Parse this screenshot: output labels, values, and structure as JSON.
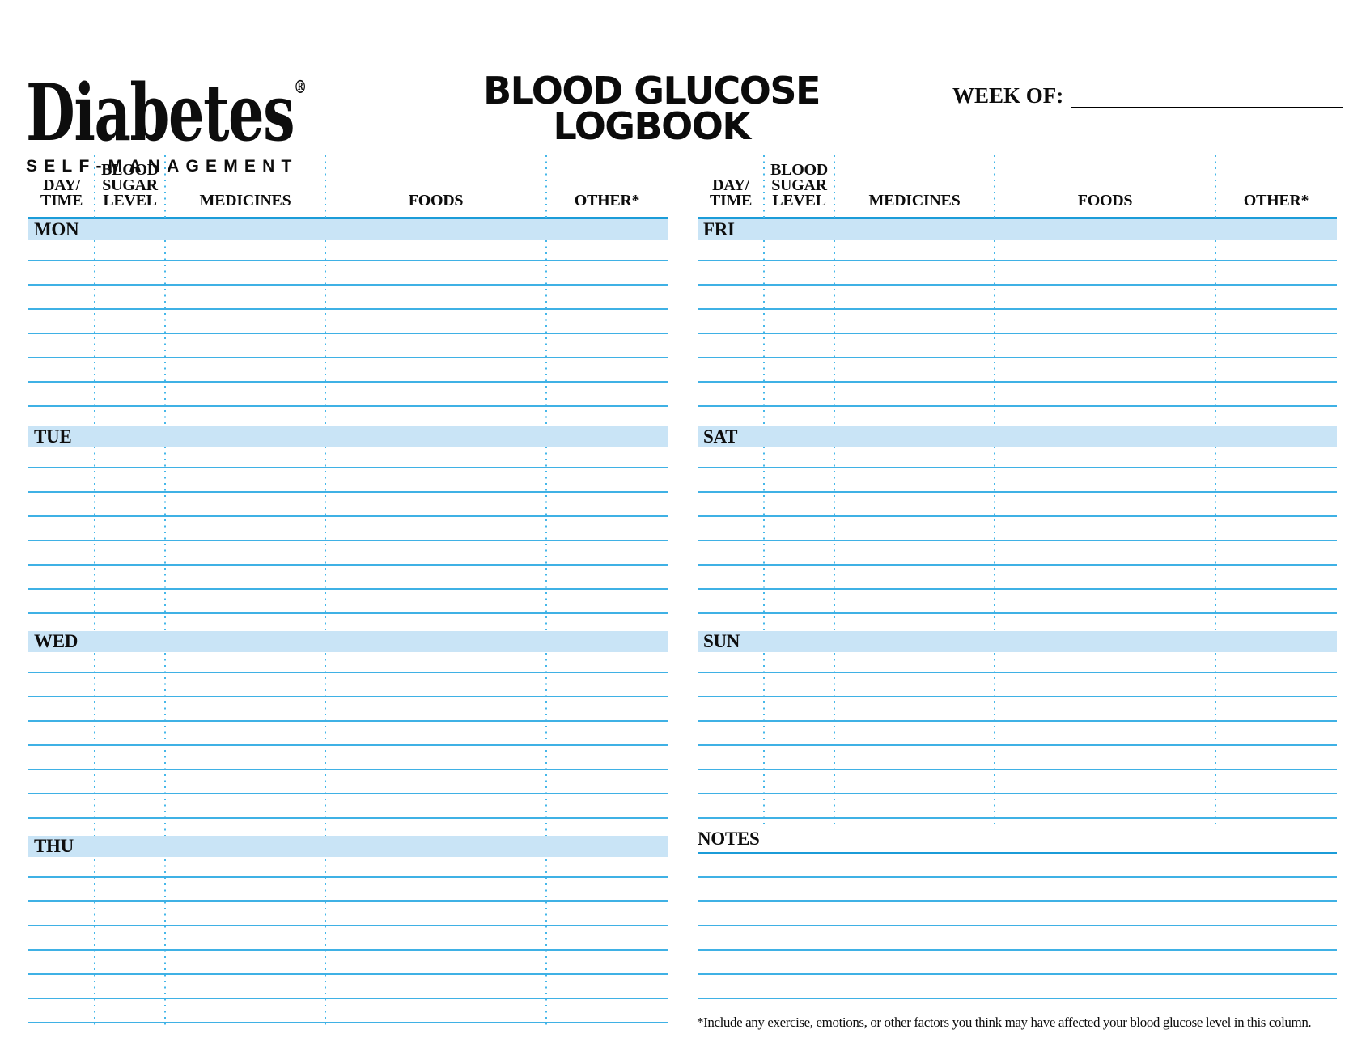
{
  "brand": {
    "name": "Diabetes",
    "registered": "®",
    "tagline": "SELF-MANAGEMENT"
  },
  "title": {
    "line1": "BLOOD GLUCOSE",
    "line2": "LOGBOOK"
  },
  "week_of": {
    "label": "WEEK OF:",
    "value": ""
  },
  "columns": [
    {
      "key": "day-time",
      "lines": [
        "DAY/",
        "TIME"
      ]
    },
    {
      "key": "blood-sugar-level",
      "lines": [
        "BLOOD",
        "SUGAR",
        "LEVEL"
      ]
    },
    {
      "key": "medicines",
      "lines": [
        "MEDICINES"
      ]
    },
    {
      "key": "foods",
      "lines": [
        "FOODS"
      ]
    },
    {
      "key": "other",
      "lines": [
        "OTHER*"
      ]
    }
  ],
  "tables": [
    {
      "id": "table-left",
      "days": [
        {
          "label": "MON",
          "rows": 7
        },
        {
          "label": "TUE",
          "rows": 7
        },
        {
          "label": "WED",
          "rows": 7
        },
        {
          "label": "THU",
          "rows": 7
        }
      ]
    },
    {
      "id": "table-right",
      "days": [
        {
          "label": "FRI",
          "rows": 7
        },
        {
          "label": "SAT",
          "rows": 7
        },
        {
          "label": "SUN",
          "rows": 7
        }
      ]
    }
  ],
  "notes": {
    "label": "NOTES",
    "lines": 6,
    "value": ""
  },
  "footnote": "*Include any exercise, emotions, or other factors you think may have affected your blood glucose level in this column.",
  "colors": {
    "rule": "#3fb1e5",
    "heavy_rule": "#1b9cd8",
    "dotted": "#45b7e9",
    "day_bar_fill": "#c9e4f6",
    "text": "#0d0d0d"
  }
}
